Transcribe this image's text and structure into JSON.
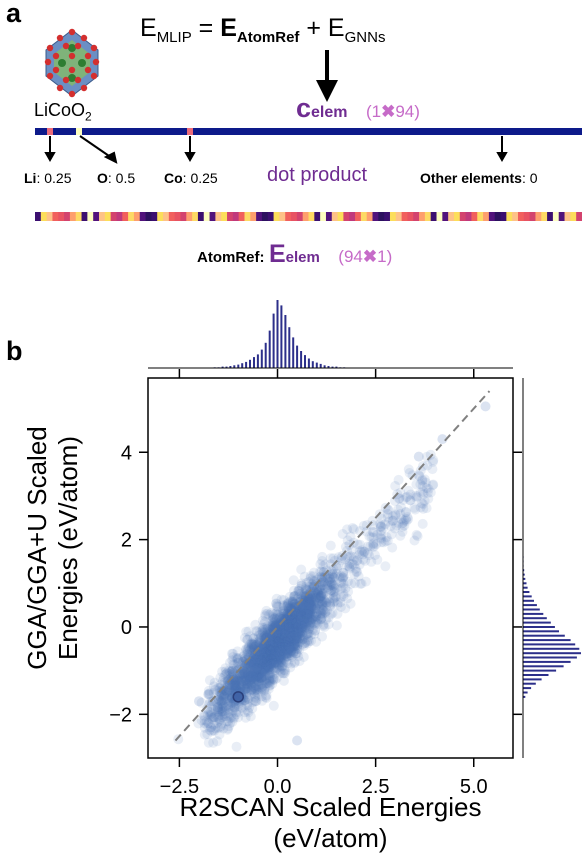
{
  "panel_a": {
    "letter": "a",
    "equation": {
      "lhs": "E",
      "lhs_sub": "MLIP",
      "eq": "=",
      "t1": "E",
      "t1_sub": "AtomRef",
      "plus": "+",
      "t2": "E",
      "t2_sub": "GNNs"
    },
    "compound": {
      "main": "LiCoO",
      "sub": "2"
    },
    "c_elem": {
      "letter": "c",
      "sub": "elem",
      "dims": "(1",
      "times": "✖",
      "dims2": "94)"
    },
    "entries": [
      {
        "el": "Li",
        "val": ": 0.25"
      },
      {
        "el": "O",
        "val": ": 0.5"
      },
      {
        "el": "Co",
        "val": ": 0.25"
      },
      {
        "el": "Other elements",
        "val": ": 0"
      }
    ],
    "dot_product": "dot product",
    "atomref": {
      "label": "AtomRef:",
      "letter": "E",
      "sub": "elem",
      "dims": "(94",
      "times": "✖",
      "dims2": "1)"
    },
    "colors": {
      "navy": "#0d1a8a",
      "purple": "#6f2c91",
      "pink": "#c66bc8"
    },
    "heatmap_colors": [
      "#3b0f70",
      "#8c2981",
      "#de4968",
      "#fe9f6d",
      "#fcfdbf",
      "#f1605d",
      "#b73779",
      "#721f81",
      "#fcde5a",
      "#e85362",
      "#51127c",
      "#fb8761",
      "#9e2f7f",
      "#fdda64",
      "#2c115f",
      "#d3436e",
      "#f8765c",
      "#5f187f",
      "#fec287",
      "#c0397c"
    ]
  },
  "panel_b": {
    "letter": "b",
    "icons": {
      "molecule": "licoo2-crystal-icon",
      "arrow": "down-arrow-icon"
    }
  },
  "chart_data": {
    "type": "scatter",
    "xlabel_line1": "R2SCAN Scaled Energies",
    "xlabel_line2": "(eV/atom)",
    "ylabel_line1": "GGA/GGA+U Scaled",
    "ylabel_line2": "Energies (eV/atom)",
    "xlim": [
      -3.3,
      6.0
    ],
    "ylim": [
      -3.0,
      5.7
    ],
    "xticks": [
      -2.5,
      0.0,
      2.5,
      5.0
    ],
    "xtick_labels": [
      "−2.5",
      "0.0",
      "2.5",
      "5.0"
    ],
    "yticks": [
      -2,
      0,
      2,
      4
    ],
    "ytick_labels": [
      "−2",
      "0",
      "2",
      "4"
    ],
    "diagonal": {
      "x": [
        -2.6,
        5.4
      ],
      "y": [
        -2.6,
        5.4
      ]
    },
    "grid": false,
    "point_color": "#4a72b8",
    "hist_color": "#2c2f8a",
    "x_hist": {
      "bin_centers": [
        -1.6,
        -1.5,
        -1.4,
        -1.3,
        -1.2,
        -1.1,
        -1.0,
        -0.9,
        -0.8,
        -0.7,
        -0.6,
        -0.5,
        -0.4,
        -0.3,
        -0.2,
        -0.1,
        0.0,
        0.1,
        0.2,
        0.3,
        0.4,
        0.5,
        0.6,
        0.7,
        0.8,
        0.9,
        1.0,
        1.1,
        1.2,
        1.3,
        1.4,
        1.5,
        1.6,
        1.7
      ],
      "counts": [
        1,
        1,
        2,
        2,
        3,
        4,
        5,
        7,
        9,
        12,
        16,
        20,
        27,
        37,
        55,
        80,
        100,
        92,
        78,
        60,
        45,
        33,
        25,
        19,
        14,
        10,
        8,
        6,
        4,
        3,
        2,
        2,
        1,
        1
      ]
    },
    "y_hist": {
      "bin_centers": [
        -1.6,
        -1.5,
        -1.4,
        -1.3,
        -1.2,
        -1.1,
        -1.0,
        -0.9,
        -0.8,
        -0.7,
        -0.6,
        -0.5,
        -0.4,
        -0.3,
        -0.2,
        -0.1,
        0.0,
        0.1,
        0.2,
        0.3,
        0.4,
        0.5,
        0.6,
        0.7,
        0.8,
        0.9,
        1.0,
        1.1,
        1.2,
        1.3,
        1.4,
        1.5,
        1.6
      ],
      "counts": [
        4,
        8,
        14,
        22,
        32,
        44,
        57,
        70,
        82,
        93,
        100,
        97,
        90,
        82,
        72,
        62,
        55,
        48,
        41,
        35,
        29,
        24,
        19,
        15,
        11,
        8,
        6,
        4,
        3,
        2,
        1,
        1,
        1
      ]
    },
    "highlighted_points": [
      {
        "x": -1.0,
        "y": -1.6
      }
    ]
  }
}
